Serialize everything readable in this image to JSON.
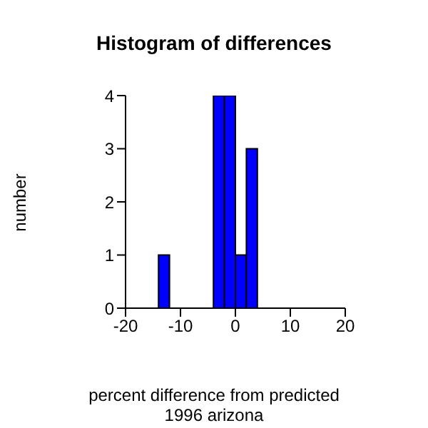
{
  "chart_data": {
    "type": "histogram",
    "title": "Histogram of differences",
    "subtitle": "1996  arizona",
    "xlabel": "percent difference from predicted",
    "ylabel": "number",
    "bins": [
      -14,
      -12,
      -10,
      -8,
      -6,
      -4,
      -2,
      0,
      2,
      4
    ],
    "values": [
      1,
      0,
      0,
      0,
      0,
      4,
      4,
      1,
      3
    ],
    "color": "#0000ff",
    "xlim": [
      -20,
      20
    ],
    "xticks": [
      -20,
      -10,
      0,
      10,
      20
    ],
    "ylim": [
      0,
      4
    ],
    "yticks": [
      0,
      1,
      2,
      3,
      4
    ],
    "grid": false
  }
}
